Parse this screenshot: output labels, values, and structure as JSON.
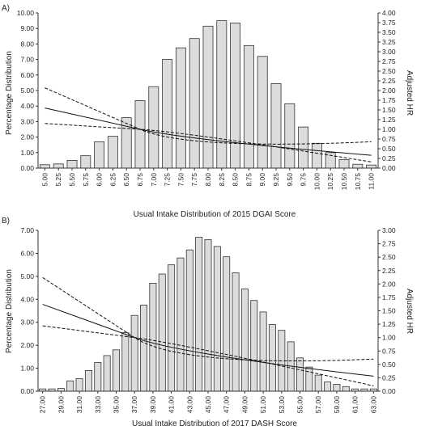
{
  "chart_data": [
    {
      "type": "bar",
      "panel_label": "A)",
      "title": "",
      "xlabel": "Usual Intake Distribution of 2015 DGAI Score",
      "ylabel": "Percentage Distribution",
      "y2label": "Adjusted HR",
      "ylim": [
        0,
        10
      ],
      "y2lim": [
        0,
        4
      ],
      "yticks": [
        "0.00",
        "1.00",
        "2.00",
        "3.00",
        "4.00",
        "5.00",
        "6.00",
        "7.00",
        "8.00",
        "9.00",
        "10.00"
      ],
      "y2ticks": [
        "0.00",
        "0.25",
        "0.50",
        "0.75",
        "1.00",
        "1.25",
        "1.50",
        "1.75",
        "2.00",
        "2.25",
        "2.50",
        "2.75",
        "3.00",
        "3.25",
        "3.50",
        "3.75",
        "4.00"
      ],
      "categories": [
        "5.00",
        "5.25",
        "5.50",
        "5.75",
        "6.00",
        "6.25",
        "6.50",
        "6.75",
        "7.00",
        "7.25",
        "7.50",
        "7.75",
        "8.00",
        "8.25",
        "8.50",
        "8.75",
        "9.00",
        "9.25",
        "9.50",
        "9.75",
        "10.00",
        "10.25",
        "10.50",
        "10.75",
        "11.00"
      ],
      "values": [
        0.22,
        0.27,
        0.5,
        0.8,
        1.7,
        2.05,
        3.25,
        4.35,
        5.25,
        7.0,
        7.75,
        8.35,
        9.15,
        9.5,
        9.35,
        7.9,
        7.2,
        5.45,
        4.15,
        2.65,
        1.6,
        1.0,
        0.55,
        0.25,
        0.2
      ],
      "hr_series": [
        {
          "name": "hr",
          "style": "solid",
          "x": [
            5.0,
            6.75,
            11.0
          ],
          "y": [
            1.55,
            1.0,
            0.33
          ]
        },
        {
          "name": "upper",
          "style": "dashed",
          "x": [
            5.0,
            6.75,
            11.0
          ],
          "y": [
            2.07,
            1.0,
            0.68
          ]
        },
        {
          "name": "lower",
          "style": "dashed",
          "x": [
            5.0,
            6.75,
            11.0
          ],
          "y": [
            1.15,
            1.0,
            0.16
          ]
        }
      ],
      "grid": false
    },
    {
      "type": "bar",
      "panel_label": "B)",
      "title": "",
      "xlabel": "Usual Intake Distribution of 2017 DASH Score",
      "ylabel": "Percentage Distribution",
      "y2label": "Adjusted HR",
      "ylim": [
        0,
        7
      ],
      "y2lim": [
        0,
        3
      ],
      "yticks": [
        "0.00",
        "1.00",
        "2.00",
        "3.00",
        "4.00",
        "5.00",
        "6.00",
        "7.00"
      ],
      "y2ticks": [
        "0.00",
        "0.25",
        "0.50",
        "0.75",
        "1.00",
        "1.25",
        "1.50",
        "1.75",
        "2.00",
        "2.25",
        "2.50",
        "2.75",
        "3.00"
      ],
      "categories": [
        "27.00",
        "28.00",
        "29.00",
        "30.00",
        "31.00",
        "32.00",
        "33.00",
        "34.00",
        "35.00",
        "36.00",
        "37.00",
        "38.00",
        "39.00",
        "40.00",
        "41.00",
        "42.00",
        "43.00",
        "44.00",
        "45.00",
        "46.00",
        "47.00",
        "48.00",
        "49.00",
        "50.00",
        "51.00",
        "52.00",
        "53.00",
        "54.00",
        "55.00",
        "56.00",
        "57.00",
        "58.00",
        "59.00",
        "60.00",
        "61.00",
        "62.00",
        "63.00"
      ],
      "tick_labels": [
        "27.00",
        "29.00",
        "31.00",
        "33.00",
        "35.00",
        "37.00",
        "39.00",
        "41.00",
        "43.00",
        "45.00",
        "47.00",
        "49.00",
        "51.00",
        "53.00",
        "55.00",
        "57.00",
        "59.00",
        "61.00",
        "63.00"
      ],
      "values": [
        0.1,
        0.1,
        0.12,
        0.45,
        0.55,
        0.9,
        1.25,
        1.55,
        1.8,
        2.55,
        3.3,
        3.75,
        4.7,
        5.1,
        5.5,
        5.8,
        6.15,
        6.7,
        6.6,
        6.3,
        5.85,
        5.15,
        4.45,
        3.95,
        3.45,
        2.9,
        2.65,
        2.15,
        1.45,
        1.05,
        0.7,
        0.4,
        0.3,
        0.2,
        0.1,
        0.1,
        0.1
      ],
      "hr_series": [
        {
          "name": "hr",
          "style": "solid",
          "x": [
            27.0,
            37.0,
            63.0
          ],
          "y": [
            1.62,
            1.0,
            0.28
          ]
        },
        {
          "name": "upper",
          "style": "dashed",
          "x": [
            27.0,
            37.0,
            63.0
          ],
          "y": [
            2.12,
            1.0,
            0.6
          ]
        },
        {
          "name": "lower",
          "style": "dashed",
          "x": [
            27.0,
            37.0,
            63.0
          ],
          "y": [
            1.22,
            1.0,
            0.1
          ]
        }
      ],
      "grid": false
    }
  ]
}
